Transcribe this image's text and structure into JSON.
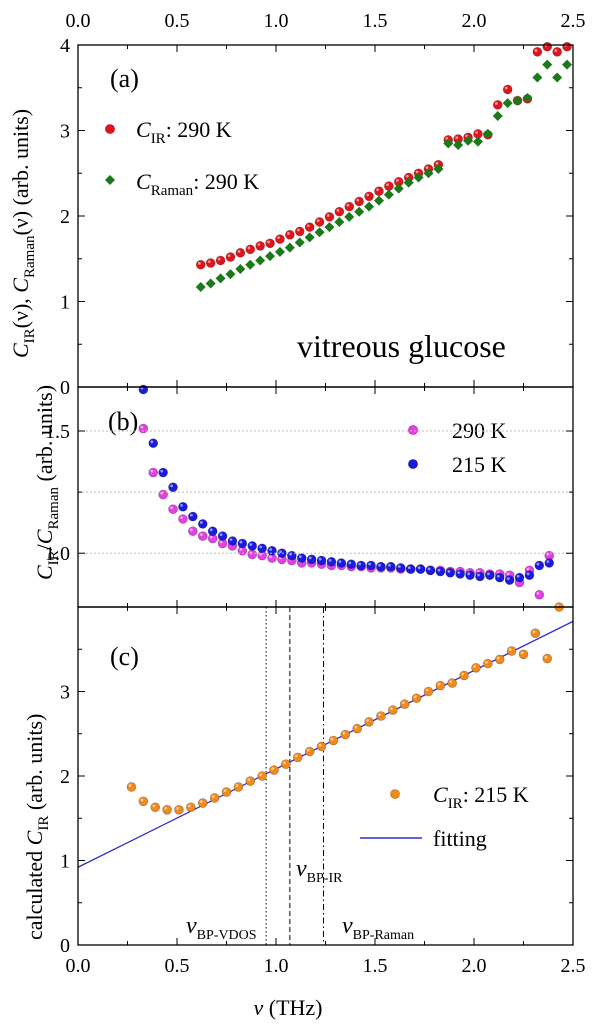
{
  "chart_data": [
    {
      "panel": "a",
      "type": "scatter",
      "panel_label": "(a)",
      "annotation": "vitreous glucose",
      "ylabel": "C_IR(ν), C_Raman(ν) (arb. units)",
      "xlim": [
        0.0,
        2.5
      ],
      "ylim": [
        0,
        4
      ],
      "x_ticks": [
        "0.0",
        "0.5",
        "1.0",
        "1.5",
        "2.0",
        "2.5"
      ],
      "y_ticks": [
        "0",
        "1",
        "2",
        "3",
        "4"
      ],
      "legend_position": "top-left",
      "series": [
        {
          "name": "C_IR: 290 K",
          "color": "#e0141a",
          "marker": "circle",
          "x": [
            0.62,
            0.67,
            0.72,
            0.77,
            0.82,
            0.87,
            0.92,
            0.97,
            1.02,
            1.07,
            1.12,
            1.17,
            1.22,
            1.27,
            1.32,
            1.37,
            1.42,
            1.47,
            1.52,
            1.57,
            1.62,
            1.67,
            1.72,
            1.77,
            1.82,
            1.87,
            1.92,
            1.97,
            2.02,
            2.07,
            2.12,
            2.17,
            2.22,
            2.27,
            2.32,
            2.37,
            2.42,
            2.47
          ],
          "y": [
            1.43,
            1.45,
            1.48,
            1.52,
            1.57,
            1.61,
            1.65,
            1.68,
            1.73,
            1.78,
            1.82,
            1.87,
            1.93,
            1.99,
            2.05,
            2.11,
            2.17,
            2.23,
            2.29,
            2.35,
            2.4,
            2.45,
            2.5,
            2.55,
            2.6,
            2.89,
            2.9,
            2.92,
            2.96,
            2.95,
            3.3,
            3.48,
            3.35,
            3.37,
            3.92,
            3.98,
            3.92,
            3.98
          ]
        },
        {
          "name": "C_Raman: 290 K",
          "color": "#1a7a1a",
          "marker": "diamond",
          "x": [
            0.62,
            0.67,
            0.72,
            0.77,
            0.82,
            0.87,
            0.92,
            0.97,
            1.02,
            1.07,
            1.12,
            1.17,
            1.22,
            1.27,
            1.32,
            1.37,
            1.42,
            1.47,
            1.52,
            1.57,
            1.62,
            1.67,
            1.72,
            1.77,
            1.82,
            1.87,
            1.92,
            1.97,
            2.02,
            2.07,
            2.12,
            2.17,
            2.22,
            2.27,
            2.32,
            2.37,
            2.42,
            2.47
          ],
          "y": [
            1.17,
            1.21,
            1.27,
            1.32,
            1.38,
            1.43,
            1.48,
            1.53,
            1.58,
            1.63,
            1.69,
            1.75,
            1.81,
            1.87,
            1.93,
            1.99,
            2.05,
            2.11,
            2.18,
            2.25,
            2.32,
            2.39,
            2.45,
            2.5,
            2.55,
            2.85,
            2.83,
            2.88,
            2.87,
            2.96,
            3.17,
            3.32,
            3.35,
            3.38,
            3.62,
            3.77,
            3.62,
            3.77
          ]
        }
      ]
    },
    {
      "panel": "b",
      "type": "scatter",
      "panel_label": "(b)",
      "ylabel": "C_IR/C_Raman (arb. units)",
      "xlim": [
        0.0,
        2.5
      ],
      "ylim": [
        0.78,
        1.68
      ],
      "y_ticks": [
        "1.0",
        "1.5"
      ],
      "y_gridlines": [
        1.0,
        1.25,
        1.5
      ],
      "legend_position": "top-right",
      "series": [
        {
          "name": "290 K",
          "color": "#e43ee4",
          "marker": "circle",
          "x": [
            0.33,
            0.38,
            0.43,
            0.48,
            0.53,
            0.58,
            0.63,
            0.68,
            0.73,
            0.78,
            0.83,
            0.88,
            0.93,
            0.98,
            1.03,
            1.08,
            1.13,
            1.18,
            1.23,
            1.28,
            1.33,
            1.38,
            1.43,
            1.48,
            1.53,
            1.58,
            1.63,
            1.68,
            1.73,
            1.78,
            1.83,
            1.88,
            1.93,
            1.98,
            2.03,
            2.08,
            2.13,
            2.18,
            2.23,
            2.28,
            2.33,
            2.38
          ],
          "y": [
            1.51,
            1.33,
            1.24,
            1.18,
            1.14,
            1.09,
            1.07,
            1.06,
            1.04,
            1.03,
            1.01,
            0.995,
            0.99,
            0.98,
            0.975,
            0.97,
            0.96,
            0.96,
            0.955,
            0.95,
            0.95,
            0.945,
            0.945,
            0.94,
            0.94,
            0.94,
            0.935,
            0.935,
            0.935,
            0.93,
            0.93,
            0.925,
            0.925,
            0.92,
            0.92,
            0.915,
            0.915,
            0.91,
            0.88,
            0.93,
            0.83,
            0.99
          ]
        },
        {
          "name": "215 K",
          "color": "#1a1ae0",
          "marker": "circle",
          "x": [
            0.33,
            0.38,
            0.43,
            0.48,
            0.53,
            0.58,
            0.63,
            0.68,
            0.73,
            0.78,
            0.83,
            0.88,
            0.93,
            0.98,
            1.03,
            1.08,
            1.13,
            1.18,
            1.23,
            1.28,
            1.33,
            1.38,
            1.43,
            1.48,
            1.53,
            1.58,
            1.63,
            1.68,
            1.73,
            1.78,
            1.83,
            1.88,
            1.93,
            1.98,
            2.03,
            2.08,
            2.13,
            2.18,
            2.23,
            2.28,
            2.33,
            2.38
          ],
          "y": [
            1.67,
            1.45,
            1.33,
            1.27,
            1.19,
            1.15,
            1.12,
            1.09,
            1.07,
            1.05,
            1.04,
            1.03,
            1.02,
            1.01,
            1.0,
            0.99,
            0.98,
            0.975,
            0.97,
            0.965,
            0.96,
            0.955,
            0.95,
            0.95,
            0.945,
            0.945,
            0.94,
            0.935,
            0.935,
            0.93,
            0.925,
            0.92,
            0.915,
            0.91,
            0.905,
            0.91,
            0.9,
            0.89,
            0.9,
            0.91,
            0.95,
            0.96
          ]
        }
      ]
    },
    {
      "panel": "c",
      "type": "scatter",
      "panel_label": "(c)",
      "xlabel": "ν (THz)",
      "ylabel": "calculated C_IR (arb. units)",
      "xlim": [
        0.0,
        2.5
      ],
      "ylim": [
        0,
        4
      ],
      "x_ticks": [
        "0.0",
        "0.5",
        "1.0",
        "1.5",
        "2.0",
        "2.5"
      ],
      "y_ticks": [
        "0",
        "1",
        "2",
        "3"
      ],
      "legend_position": "right",
      "series": [
        {
          "name": "C_IR: 215 K",
          "color": "#f08a1e",
          "marker": "circle",
          "x": [
            0.27,
            0.33,
            0.39,
            0.45,
            0.51,
            0.57,
            0.63,
            0.69,
            0.75,
            0.81,
            0.87,
            0.93,
            0.99,
            1.05,
            1.11,
            1.17,
            1.23,
            1.29,
            1.35,
            1.41,
            1.47,
            1.53,
            1.59,
            1.65,
            1.71,
            1.77,
            1.83,
            1.89,
            1.95,
            2.01,
            2.07,
            2.13,
            2.19,
            2.25,
            2.31,
            2.37,
            2.43
          ],
          "y": [
            1.87,
            1.7,
            1.63,
            1.6,
            1.6,
            1.63,
            1.68,
            1.74,
            1.81,
            1.87,
            1.94,
            2.0,
            2.07,
            2.14,
            2.22,
            2.29,
            2.35,
            2.42,
            2.49,
            2.56,
            2.64,
            2.71,
            2.78,
            2.85,
            2.92,
            3.0,
            3.07,
            3.1,
            3.19,
            3.28,
            3.33,
            3.38,
            3.48,
            3.44,
            3.69,
            3.39,
            4.0
          ]
        }
      ],
      "fit_line": {
        "name": "fitting",
        "color": "#2b2bd6",
        "x": [
          0.0,
          2.5
        ],
        "y": [
          0.92,
          3.83
        ]
      },
      "vertical_lines": [
        {
          "x": 0.95,
          "style": "dotted",
          "label_main": "ν",
          "label_sub": "BP-VDOS"
        },
        {
          "x": 1.07,
          "style": "dashed",
          "label_main": "ν",
          "label_sub": "BP-IR"
        },
        {
          "x": 1.24,
          "style": "dashdot",
          "label_main": "ν",
          "label_sub": "BP-Raman"
        }
      ]
    }
  ],
  "labels": {
    "a_y_main1": "C",
    "a_y_sub1": "IR",
    "a_y_mid": "(ν), ",
    "a_y_main2": "C",
    "a_y_sub2": "Raman",
    "a_y_end": "(ν) (arb. units)",
    "a_leg1_main": "C",
    "a_leg1_sub": "IR",
    "a_leg1_rest": ": 290 K",
    "a_leg2_main": "C",
    "a_leg2_sub": "Raman",
    "a_leg2_rest": ": 290 K",
    "b_y_main1": "C",
    "b_y_sub1": "IR",
    "b_y_slash": "/",
    "b_y_main2": "C",
    "b_y_sub2": "Raman",
    "b_y_end": " (arb. units)",
    "c_y_pre": "calculated ",
    "c_y_main": "C",
    "c_y_sub": "IR",
    "c_y_end": " (arb. units)",
    "c_leg1_main": "C",
    "c_leg1_sub": "IR",
    "c_leg1_rest": ": 215 K",
    "x_main": "ν",
    "x_rest": " (THz)"
  }
}
